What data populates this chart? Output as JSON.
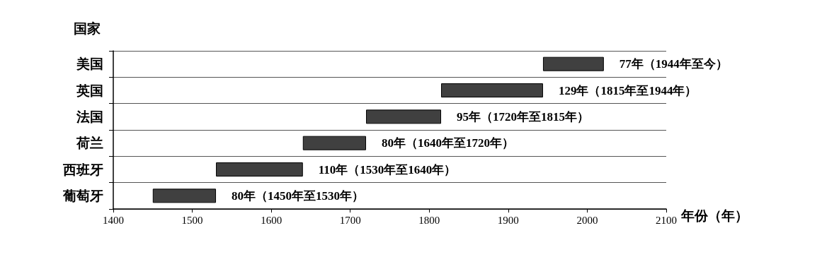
{
  "chart_data": {
    "type": "bar",
    "orientation": "horizontal",
    "ylabel": "国家",
    "xlabel": "年份（年）",
    "categories": [
      "美国",
      "英国",
      "法国",
      "荷兰",
      "西班牙",
      "葡萄牙"
    ],
    "base": [
      1944,
      1815,
      1720,
      1640,
      1530,
      1450
    ],
    "values": [
      77,
      129,
      95,
      80,
      110,
      80
    ],
    "value_labels": [
      "77年（1944年至今）",
      "129年（1815年至1944年）",
      "95年（1720年至1815年）",
      "80年（1640年至1720年）",
      "110年（1530年至1640年）",
      "80年（1450年至1530年）"
    ],
    "color": "#404040",
    "xlim": [
      1400,
      2100
    ],
    "xticks": [
      1400,
      1500,
      1600,
      1700,
      1800,
      1900,
      2000,
      2100
    ],
    "grid": "y"
  }
}
